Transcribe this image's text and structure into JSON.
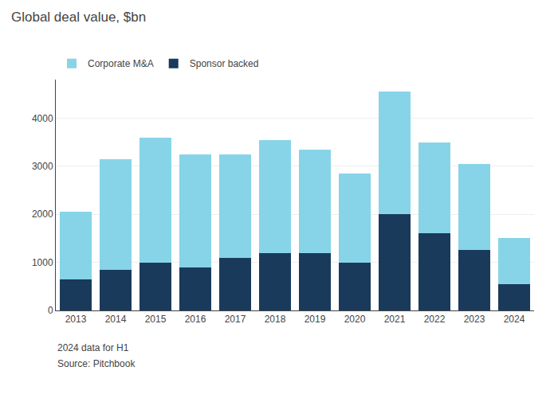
{
  "chart_data": {
    "type": "bar",
    "title": "Global deal value, $bn",
    "categories": [
      "2013",
      "2014",
      "2015",
      "2016",
      "2017",
      "2018",
      "2019",
      "2020",
      "2021",
      "2022",
      "2023",
      "2024"
    ],
    "series": [
      {
        "name": "Sponsor backed",
        "color": "#1a3a5c",
        "values": [
          650,
          850,
          1000,
          900,
          1100,
          1200,
          1200,
          1000,
          2000,
          1600,
          1250,
          550
        ]
      },
      {
        "name": "Corporate M&A",
        "color": "#87d4e8",
        "values": [
          1400,
          2300,
          2600,
          2350,
          2150,
          2350,
          2150,
          1850,
          2550,
          1900,
          1800,
          950
        ]
      }
    ],
    "stacked": true,
    "ylim": [
      0,
      4800
    ],
    "yticks": [
      0,
      1000,
      2000,
      3000,
      4000
    ],
    "grid": true,
    "legend": "upper left",
    "annotations": [
      "2024 data for H1",
      "Source: Pitchbook"
    ]
  }
}
